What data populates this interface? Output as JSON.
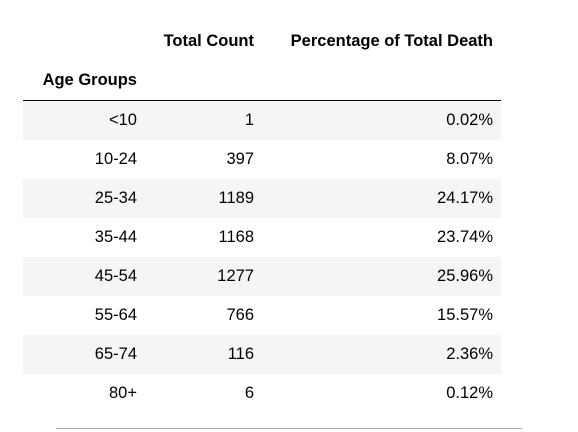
{
  "table": {
    "index_name": "Age Groups",
    "columns": [
      "Total Count",
      "Percentage of Total Death"
    ],
    "rows": [
      {
        "group": "<10",
        "count": "1",
        "pct": "0.02%"
      },
      {
        "group": "10-24",
        "count": "397",
        "pct": "8.07%"
      },
      {
        "group": "25-34",
        "count": "1189",
        "pct": "24.17%"
      },
      {
        "group": "35-44",
        "count": "1168",
        "pct": "23.74%"
      },
      {
        "group": "45-54",
        "count": "1277",
        "pct": "25.96%"
      },
      {
        "group": "55-64",
        "count": "766",
        "pct": "15.57%"
      },
      {
        "group": "65-74",
        "count": "116",
        "pct": "2.36%"
      },
      {
        "group": "80+",
        "count": "6",
        "pct": "0.12%"
      }
    ]
  },
  "colors": {
    "stripe": "#f5f5f5",
    "header_rule": "#000000",
    "bottom_rule": "#a9a9a9"
  }
}
